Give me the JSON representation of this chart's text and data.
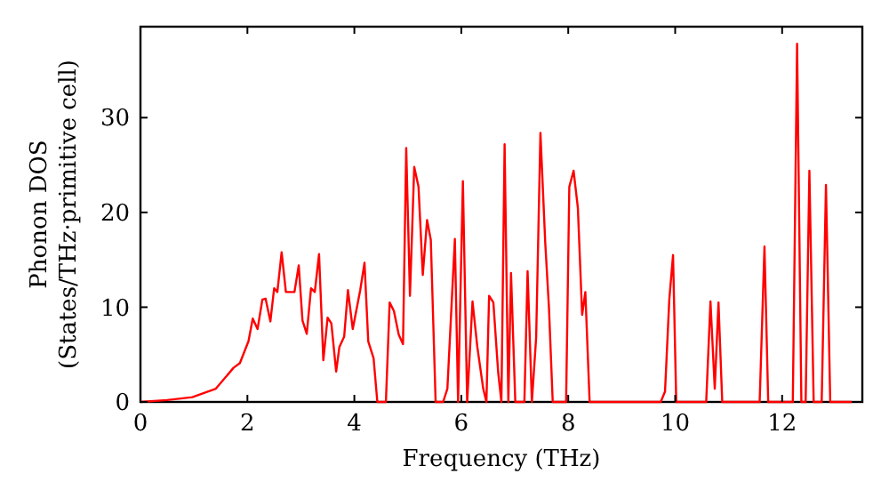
{
  "chart_data": {
    "type": "line",
    "xlabel": "Frequency (THz)",
    "ylabel": "Phonon DOS\n(States/THz·primitive cell)",
    "xlim": [
      0,
      13.5
    ],
    "ylim": [
      0,
      39.6
    ],
    "xticks": [
      0,
      2,
      4,
      6,
      8,
      10,
      12
    ],
    "yticks": [
      0,
      10,
      20,
      30
    ],
    "grid": false,
    "marker": "none",
    "line_style": "solid",
    "series": [
      {
        "color": "#ff0000",
        "x": [
          0,
          0.5,
          0.97,
          1.41,
          1.74,
          1.86,
          2.02,
          2.1,
          2.19,
          2.28,
          2.34,
          2.43,
          2.5,
          2.56,
          2.64,
          2.72,
          2.88,
          2.96,
          3.03,
          3.11,
          3.19,
          3.26,
          3.34,
          3.42,
          3.5,
          3.57,
          3.66,
          3.72,
          3.81,
          3.88,
          3.97,
          4.11,
          4.19,
          4.26,
          4.36,
          4.43,
          4.59,
          4.66,
          4.74,
          4.83,
          4.91,
          4.97,
          5.04,
          5.12,
          5.2,
          5.28,
          5.36,
          5.43,
          5.52,
          5.66,
          5.74,
          5.88,
          5.94,
          6.03,
          6.11,
          6.21,
          6.3,
          6.41,
          6.47,
          6.52,
          6.6,
          6.69,
          6.75,
          6.81,
          6.88,
          6.93,
          7.01,
          7.18,
          7.24,
          7.32,
          7.4,
          7.48,
          7.57,
          7.64,
          7.71,
          7.96,
          8.02,
          8.1,
          8.18,
          8.26,
          8.32,
          8.4,
          9.73,
          9.81,
          9.89,
          9.96,
          10.02,
          10.58,
          10.66,
          10.74,
          10.81,
          10.88,
          11.58,
          11.67,
          11.74,
          12.2,
          12.28,
          12.36,
          12.44,
          12.51,
          12.59,
          12.74,
          12.82,
          12.9,
          13.3
        ],
        "values": [
          0,
          0.2,
          0.5,
          1.4,
          3.6,
          4.1,
          6.4,
          8.8,
          7.7,
          10.8,
          10.9,
          8.5,
          12,
          11.6,
          15.8,
          11.6,
          11.6,
          14.4,
          8.6,
          7.2,
          12,
          11.6,
          15.6,
          4.4,
          8.9,
          8.3,
          3.2,
          5.8,
          6.9,
          11.8,
          7.7,
          11.8,
          14.7,
          6.4,
          4.6,
          0,
          0,
          10.5,
          9.6,
          7.1,
          6.1,
          26.8,
          11.2,
          24.8,
          22.7,
          13.4,
          19.2,
          17.1,
          0,
          0,
          1.4,
          17.2,
          0,
          23.3,
          0,
          10.6,
          5.8,
          1.4,
          0,
          11.2,
          10.5,
          3.1,
          0,
          27.2,
          0,
          13.6,
          0,
          0,
          13.8,
          0,
          6.8,
          28.4,
          16.8,
          9.9,
          0,
          0,
          22.7,
          24.4,
          20.5,
          9.2,
          11.6,
          0,
          0,
          1.1,
          10.8,
          15.5,
          0,
          0,
          10.6,
          1.4,
          10.5,
          0,
          0,
          16.4,
          0,
          0,
          37.8,
          0,
          0,
          24.4,
          0,
          0,
          22.9,
          0,
          0
        ]
      }
    ]
  }
}
